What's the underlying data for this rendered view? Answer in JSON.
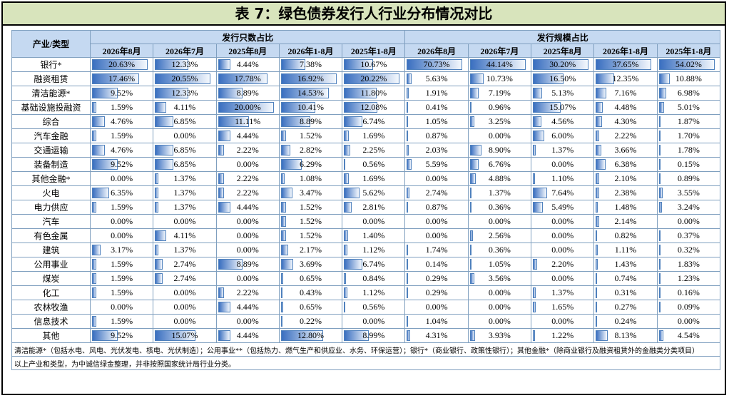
{
  "header": {
    "title": "表 7：绿色债券发行人行业分布情况对比"
  },
  "table": {
    "corner": "产业/类型",
    "groups": [
      "发行只数占比",
      "发行规模占比"
    ],
    "periods": [
      "2026年8月",
      "2026年7月",
      "2025年8月",
      "2026年1-8月",
      "2025年1-8月"
    ],
    "rows": [
      {
        "label": "银行*",
        "values": [
          20.63,
          12.33,
          4.44,
          7.38,
          10.67,
          70.73,
          44.14,
          30.2,
          37.65,
          54.02
        ],
        "value_labels": [
          "20.63%",
          "12.33%",
          "4.44%",
          "7.38%",
          "10.67%",
          "70.73%",
          "44.14%",
          "30.20%",
          "37.65%",
          "54.02%"
        ]
      },
      {
        "label": "融资租赁",
        "values": [
          17.46,
          20.55,
          17.78,
          16.92,
          20.22,
          5.63,
          10.73,
          16.5,
          12.35,
          10.88
        ],
        "value_labels": [
          "17.46%",
          "20.55%",
          "17.78%",
          "16.92%",
          "20.22%",
          "5.63%",
          "10.73%",
          "16.50%",
          "12.35%",
          "10.88%"
        ]
      },
      {
        "label": "清洁能源*",
        "values": [
          9.52,
          12.33,
          8.89,
          14.53,
          11.8,
          1.91,
          7.19,
          5.13,
          7.16,
          6.98
        ],
        "value_labels": [
          "9.52%",
          "12.33%",
          "8.89%",
          "14.53%",
          "11.80%",
          "1.91%",
          "7.19%",
          "5.13%",
          "7.16%",
          "6.98%"
        ]
      },
      {
        "label": "基础设施投融资",
        "values": [
          1.59,
          4.11,
          20.0,
          10.41,
          12.08,
          0.41,
          0.96,
          15.07,
          4.48,
          5.01
        ],
        "value_labels": [
          "1.59%",
          "4.11%",
          "20.00%",
          "10.41%",
          "12.08%",
          "0.41%",
          "0.96%",
          "15.07%",
          "4.48%",
          "5.01%"
        ]
      },
      {
        "label": "综合",
        "values": [
          4.76,
          6.85,
          11.11,
          8.89,
          6.74,
          1.05,
          3.25,
          4.56,
          4.3,
          1.87
        ],
        "value_labels": [
          "4.76%",
          "6.85%",
          "11.11%",
          "8.89%",
          "6.74%",
          "1.05%",
          "3.25%",
          "4.56%",
          "4.30%",
          "1.87%"
        ]
      },
      {
        "label": "汽车金融",
        "values": [
          1.59,
          0.0,
          4.44,
          1.52,
          1.69,
          0.87,
          0.0,
          6.0,
          2.22,
          1.7
        ],
        "value_labels": [
          "1.59%",
          "0.00%",
          "4.44%",
          "1.52%",
          "1.69%",
          "0.87%",
          "0.00%",
          "6.00%",
          "2.22%",
          "1.70%"
        ]
      },
      {
        "label": "交通运输",
        "values": [
          4.76,
          6.85,
          2.22,
          2.82,
          2.25,
          2.03,
          8.9,
          1.37,
          3.66,
          1.78
        ],
        "value_labels": [
          "4.76%",
          "6.85%",
          "2.22%",
          "2.82%",
          "2.25%",
          "2.03%",
          "8.90%",
          "1.37%",
          "3.66%",
          "1.78%"
        ]
      },
      {
        "label": "装备制造",
        "values": [
          9.52,
          6.85,
          0.0,
          6.29,
          0.56,
          5.59,
          6.76,
          0.0,
          6.38,
          0.15
        ],
        "value_labels": [
          "9.52%",
          "6.85%",
          "0.00%",
          "6.29%",
          "0.56%",
          "5.59%",
          "6.76%",
          "0.00%",
          "6.38%",
          "0.15%"
        ]
      },
      {
        "label": "其他金融*",
        "values": [
          0.0,
          1.37,
          2.22,
          1.08,
          1.69,
          0.0,
          4.88,
          1.1,
          2.1,
          0.89
        ],
        "value_labels": [
          "0.00%",
          "1.37%",
          "2.22%",
          "1.08%",
          "1.69%",
          "0.00%",
          "4.88%",
          "1.10%",
          "2.10%",
          "0.89%"
        ]
      },
      {
        "label": "火电",
        "values": [
          6.35,
          1.37,
          2.22,
          3.47,
          5.62,
          2.74,
          1.37,
          7.64,
          2.38,
          3.55
        ],
        "value_labels": [
          "6.35%",
          "1.37%",
          "2.22%",
          "3.47%",
          "5.62%",
          "2.74%",
          "1.37%",
          "7.64%",
          "2.38%",
          "3.55%"
        ]
      },
      {
        "label": "电力供应",
        "values": [
          1.59,
          1.37,
          4.44,
          1.52,
          2.81,
          0.87,
          0.36,
          5.49,
          1.48,
          3.24
        ],
        "value_labels": [
          "1.59%",
          "1.37%",
          "4.44%",
          "1.52%",
          "2.81%",
          "0.87%",
          "0.36%",
          "5.49%",
          "1.48%",
          "3.24%"
        ]
      },
      {
        "label": "汽车",
        "values": [
          0.0,
          0.0,
          0.0,
          1.52,
          0.0,
          0.0,
          0.0,
          0.0,
          2.14,
          0.0
        ],
        "value_labels": [
          "0.00%",
          "0.00%",
          "0.00%",
          "1.52%",
          "0.00%",
          "0.00%",
          "0.00%",
          "0.00%",
          "2.14%",
          "0.00%"
        ]
      },
      {
        "label": "有色金属",
        "values": [
          0.0,
          4.11,
          0.0,
          1.52,
          1.4,
          0.0,
          2.56,
          0.0,
          0.82,
          0.37
        ],
        "value_labels": [
          "0.00%",
          "4.11%",
          "0.00%",
          "1.52%",
          "1.40%",
          "0.00%",
          "2.56%",
          "0.00%",
          "0.82%",
          "0.37%"
        ]
      },
      {
        "label": "建筑",
        "values": [
          3.17,
          1.37,
          0.0,
          2.17,
          1.12,
          1.74,
          0.36,
          0.0,
          1.11,
          0.32
        ],
        "value_labels": [
          "3.17%",
          "1.37%",
          "0.00%",
          "2.17%",
          "1.12%",
          "1.74%",
          "0.36%",
          "0.00%",
          "1.11%",
          "0.32%"
        ]
      },
      {
        "label": "公用事业",
        "values": [
          1.59,
          2.74,
          8.89,
          3.69,
          6.74,
          0.14,
          1.05,
          2.2,
          1.43,
          1.83
        ],
        "value_labels": [
          "1.59%",
          "2.74%",
          "8.89%",
          "3.69%",
          "6.74%",
          "0.14%",
          "1.05%",
          "2.20%",
          "1.43%",
          "1.83%"
        ]
      },
      {
        "label": "煤炭",
        "values": [
          1.59,
          2.74,
          0.0,
          0.65,
          0.84,
          0.29,
          3.56,
          0.0,
          0.74,
          1.23
        ],
        "value_labels": [
          "1.59%",
          "2.74%",
          "0.00%",
          "0.65%",
          "0.84%",
          "0.29%",
          "3.56%",
          "0.00%",
          "0.74%",
          "1.23%"
        ]
      },
      {
        "label": "化工",
        "values": [
          1.59,
          0.0,
          2.22,
          0.43,
          1.12,
          0.29,
          0.0,
          1.37,
          0.31,
          0.16
        ],
        "value_labels": [
          "1.59%",
          "0.00%",
          "2.22%",
          "0.43%",
          "1.12%",
          "0.29%",
          "0.00%",
          "1.37%",
          "0.31%",
          "0.16%"
        ]
      },
      {
        "label": "农林牧渔",
        "values": [
          0.0,
          0.0,
          4.44,
          0.65,
          0.56,
          0.0,
          0.0,
          1.65,
          0.27,
          0.09
        ],
        "value_labels": [
          "0.00%",
          "0.00%",
          "4.44%",
          "0.65%",
          "0.56%",
          "0.00%",
          "0.00%",
          "1.65%",
          "0.27%",
          "0.09%"
        ]
      },
      {
        "label": "信息技术",
        "values": [
          1.59,
          0.0,
          0.0,
          0.22,
          0.0,
          1.04,
          0.0,
          0.0,
          0.24,
          0.0
        ],
        "value_labels": [
          "1.59%",
          "0.00%",
          "0.00%",
          "0.22%",
          "0.00%",
          "1.04%",
          "0.00%",
          "0.00%",
          "0.24%",
          "0.00%"
        ]
      },
      {
        "label": "其他",
        "values": [
          9.52,
          15.07,
          4.44,
          12.8,
          8.99,
          4.31,
          3.93,
          1.22,
          8.13,
          4.54
        ],
        "value_labels": [
          "9.52%",
          "15.07%",
          "4.44%",
          "12.80%",
          "8.99%",
          "4.31%",
          "3.93%",
          "1.22%",
          "8.13%",
          "4.54%"
        ]
      }
    ],
    "notes": [
      "清洁能源*（包括水电、风电、光伏发电、核电、光伏制造）；公用事业**（包括热力、燃气生产和供应业、水务、环保运营）；银行*（商业银行、政策性银行）；其他金融*（除商业银行及融资租赁外的金融类分类项目）",
      "以上产业和类型，为中诚信绿金整理，并非按照国家统计局行业分类。"
    ]
  }
}
